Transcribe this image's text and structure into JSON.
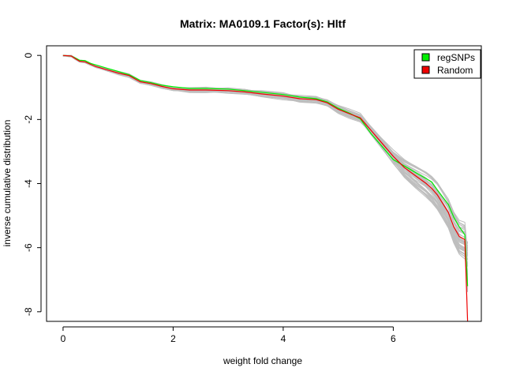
{
  "chart_data": {
    "type": "line",
    "title": "Matrix: MA0109.1 Factor(s): Hltf",
    "xlabel": "weight fold change",
    "ylabel": "inverse cumulative distribution",
    "xlim": [
      -0.3,
      7.6
    ],
    "ylim": [
      -8.3,
      0.3
    ],
    "xticks": [
      0,
      2,
      4,
      6
    ],
    "yticks": [
      0,
      -2,
      -4,
      -6,
      -8
    ],
    "grid": false,
    "legend": {
      "position": "top-right",
      "entries": [
        {
          "label": "regSNPs",
          "color": "#00ee00"
        },
        {
          "label": "Random",
          "color": "#ee0000"
        }
      ]
    },
    "background_series_color": "#bebebe",
    "series": [
      {
        "name": "regSNPs",
        "color": "#00ee00",
        "x": [
          0,
          0.15,
          0.22,
          0.3,
          0.4,
          0.5,
          0.6,
          0.8,
          1.0,
          1.2,
          1.4,
          1.6,
          1.8,
          2.0,
          2.3,
          2.6,
          3.0,
          3.3,
          3.6,
          4.0,
          4.3,
          4.6,
          4.8,
          5.0,
          5.2,
          5.4,
          5.6,
          5.8,
          6.0,
          6.2,
          6.4,
          6.6,
          6.7,
          6.8,
          7.0,
          7.1,
          7.2,
          7.3,
          7.35
        ],
        "y": [
          0,
          -0.02,
          -0.08,
          -0.15,
          -0.16,
          -0.25,
          -0.3,
          -0.4,
          -0.5,
          -0.6,
          -0.78,
          -0.85,
          -0.93,
          -0.98,
          -1.03,
          -1.03,
          -1.05,
          -1.1,
          -1.15,
          -1.22,
          -1.3,
          -1.35,
          -1.45,
          -1.65,
          -1.8,
          -1.98,
          -2.45,
          -2.85,
          -3.25,
          -3.45,
          -3.65,
          -3.85,
          -3.95,
          -4.2,
          -4.65,
          -5.05,
          -5.35,
          -5.6,
          -7.2
        ]
      },
      {
        "name": "Random",
        "color": "#ee0000",
        "x": [
          0,
          0.15,
          0.22,
          0.3,
          0.4,
          0.5,
          0.6,
          0.8,
          1.0,
          1.2,
          1.4,
          1.6,
          1.8,
          2.0,
          2.3,
          2.6,
          3.0,
          3.3,
          3.6,
          4.0,
          4.3,
          4.6,
          4.8,
          5.0,
          5.2,
          5.4,
          5.6,
          5.8,
          6.0,
          6.2,
          6.4,
          6.6,
          6.7,
          6.8,
          7.0,
          7.1,
          7.2,
          7.3,
          7.35
        ],
        "y": [
          0,
          -0.02,
          -0.1,
          -0.18,
          -0.2,
          -0.28,
          -0.35,
          -0.45,
          -0.55,
          -0.63,
          -0.82,
          -0.88,
          -0.97,
          -1.04,
          -1.08,
          -1.08,
          -1.1,
          -1.14,
          -1.2,
          -1.27,
          -1.35,
          -1.38,
          -1.48,
          -1.68,
          -1.82,
          -1.95,
          -2.35,
          -2.75,
          -3.15,
          -3.5,
          -3.75,
          -4.0,
          -4.15,
          -4.35,
          -4.9,
          -5.35,
          -5.65,
          -5.75,
          -8.3
        ]
      }
    ]
  }
}
